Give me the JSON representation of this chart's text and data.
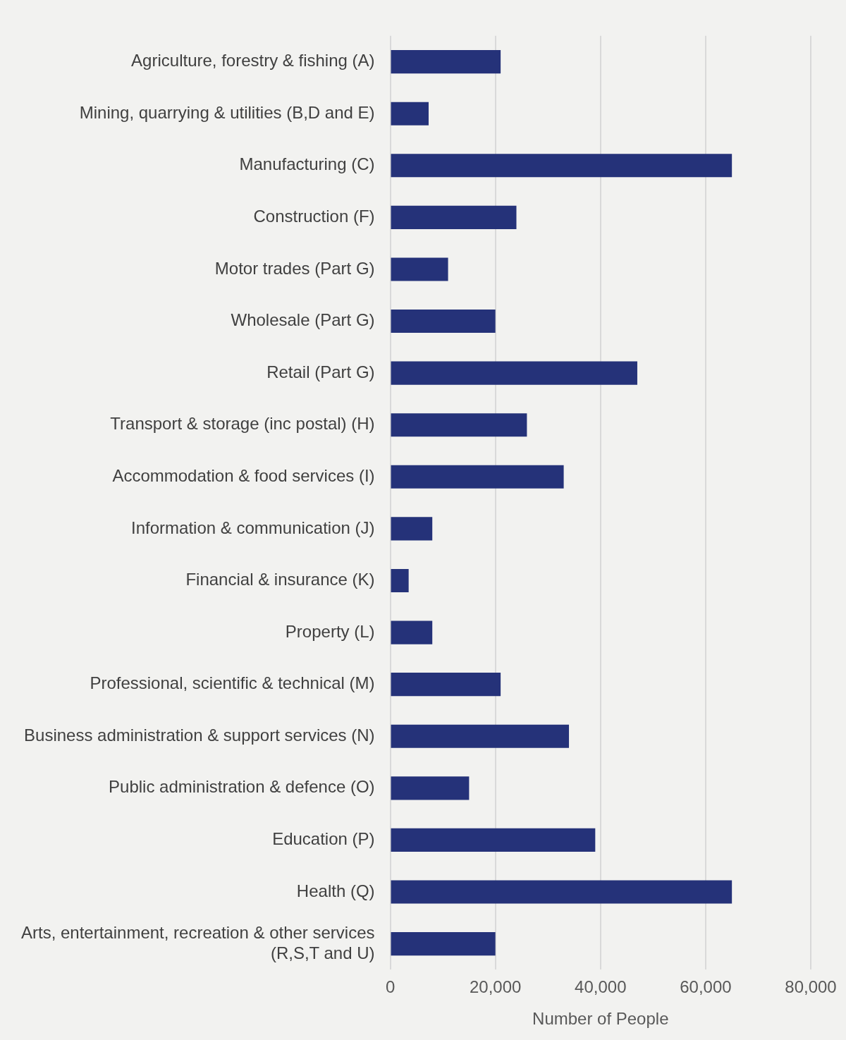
{
  "chart_data": {
    "type": "bar",
    "orientation": "horizontal",
    "xlabel": "Number of People",
    "categories": [
      "Agriculture, forestry & fishing (A)",
      "Mining, quarrying & utilities (B,D and E)",
      "Manufacturing (C)",
      "Construction (F)",
      "Motor trades (Part G)",
      "Wholesale (Part G)",
      "Retail (Part G)",
      "Transport & storage (inc postal) (H)",
      "Accommodation & food services (I)",
      "Information & communication (J)",
      "Financial & insurance (K)",
      "Property (L)",
      "Professional, scientific & technical (M)",
      "Business administration & support services (N)",
      "Public administration & defence (O)",
      "Education (P)",
      "Health (Q)",
      "Arts, entertainment, recreation & other services (R,S,T and U)"
    ],
    "values": [
      21000,
      7300,
      65000,
      24000,
      11000,
      20000,
      47000,
      26000,
      33000,
      8000,
      3500,
      8000,
      21000,
      34000,
      15000,
      39000,
      65000,
      20000
    ],
    "color": "#253279",
    "xlim": [
      0,
      80000
    ],
    "xticks": [
      0,
      {
        "value": 20000,
        "label": "20,000"
      },
      {
        "value": 40000,
        "label": "40,000"
      },
      {
        "value": 60000,
        "label": "60,000"
      },
      {
        "value": 80000,
        "label": "80,000"
      }
    ],
    "grid": "x",
    "legend": false
  }
}
